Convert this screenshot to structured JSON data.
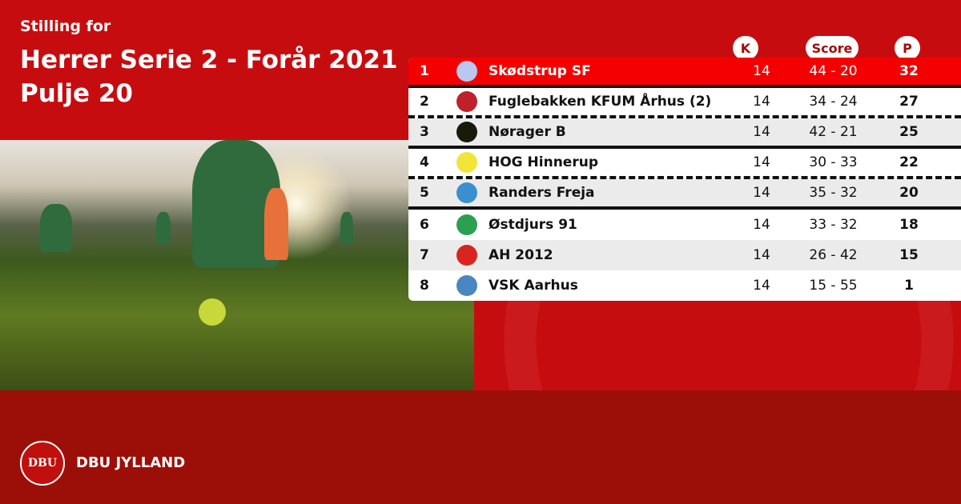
{
  "header": {
    "pre": "Stilling for",
    "title": "Herrer Serie 2 - Forår 2021",
    "pool": "Pulje 20"
  },
  "columns": {
    "k": "K",
    "score": "Score",
    "p": "P"
  },
  "rows": [
    {
      "rank": "1",
      "team": "Skødstrup SF",
      "k": "14",
      "score": "44 - 20",
      "p": "32",
      "logo_color": "#b8c8f0"
    },
    {
      "rank": "2",
      "team": "Fuglebakken KFUM Århus (2)",
      "k": "14",
      "score": "34 - 24",
      "p": "27",
      "logo_color": "#c0202a"
    },
    {
      "rank": "3",
      "team": "Nørager B",
      "k": "14",
      "score": "42 - 21",
      "p": "25",
      "logo_color": "#1a1a0a"
    },
    {
      "rank": "4",
      "team": "HOG Hinnerup",
      "k": "14",
      "score": "30 - 33",
      "p": "22",
      "logo_color": "#f2e53a"
    },
    {
      "rank": "5",
      "team": "Randers Freja",
      "k": "14",
      "score": "35 - 32",
      "p": "20",
      "logo_color": "#3a8fd0"
    },
    {
      "rank": "6",
      "team": "Østdjurs 91",
      "k": "14",
      "score": "33 - 32",
      "p": "18",
      "logo_color": "#2aa050"
    },
    {
      "rank": "7",
      "team": "AH 2012",
      "k": "14",
      "score": "26 - 42",
      "p": "15",
      "logo_color": "#d8261e"
    },
    {
      "rank": "8",
      "team": "VSK Aarhus",
      "k": "14",
      "score": "15 - 55",
      "p": "1",
      "logo_color": "#4a86c0"
    }
  ],
  "footer": {
    "logo_text": "DBU",
    "brand": "DBU JYLLAND"
  }
}
